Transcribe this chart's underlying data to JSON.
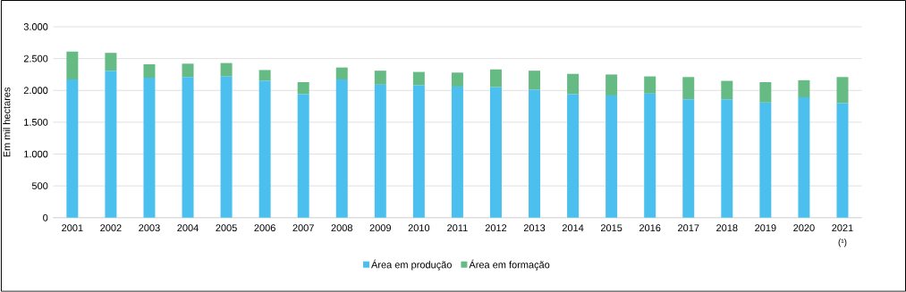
{
  "chart_data": {
    "type": "bar",
    "stacked": true,
    "ylabel": "Em mil hectares",
    "categories": [
      "2001",
      "2002",
      "2003",
      "2004",
      "2005",
      "2006",
      "2007",
      "2008",
      "2009",
      "2010",
      "2011",
      "2012",
      "2013",
      "2014",
      "2015",
      "2016",
      "2017",
      "2018",
      "2019",
      "2020",
      "2021"
    ],
    "series": [
      {
        "name": "Área em produção",
        "color": "#4bc0ee",
        "values": [
          2170,
          2310,
          2200,
          2210,
          2220,
          2150,
          1940,
          2170,
          2090,
          2080,
          2060,
          2050,
          2010,
          1940,
          1920,
          1950,
          1860,
          1860,
          1810,
          1890,
          1800
        ]
      },
      {
        "name": "Área em formação",
        "color": "#66bb85",
        "values": [
          440,
          280,
          210,
          210,
          210,
          170,
          190,
          190,
          220,
          210,
          220,
          280,
          300,
          320,
          330,
          270,
          350,
          290,
          320,
          270,
          410
        ]
      }
    ],
    "ylim": [
      0,
      3000
    ],
    "yticks": [
      0,
      500,
      {
        "value": 1000,
        "label": "1.000"
      },
      {
        "value": 1500,
        "label": "1.500"
      },
      {
        "value": 2000,
        "label": "2.000"
      },
      {
        "value": 2500,
        "label": "2.500"
      },
      {
        "value": 3000,
        "label": "3.000"
      }
    ],
    "grid": "y",
    "legend": "bottom",
    "annotations": [
      "(¹)"
    ]
  }
}
